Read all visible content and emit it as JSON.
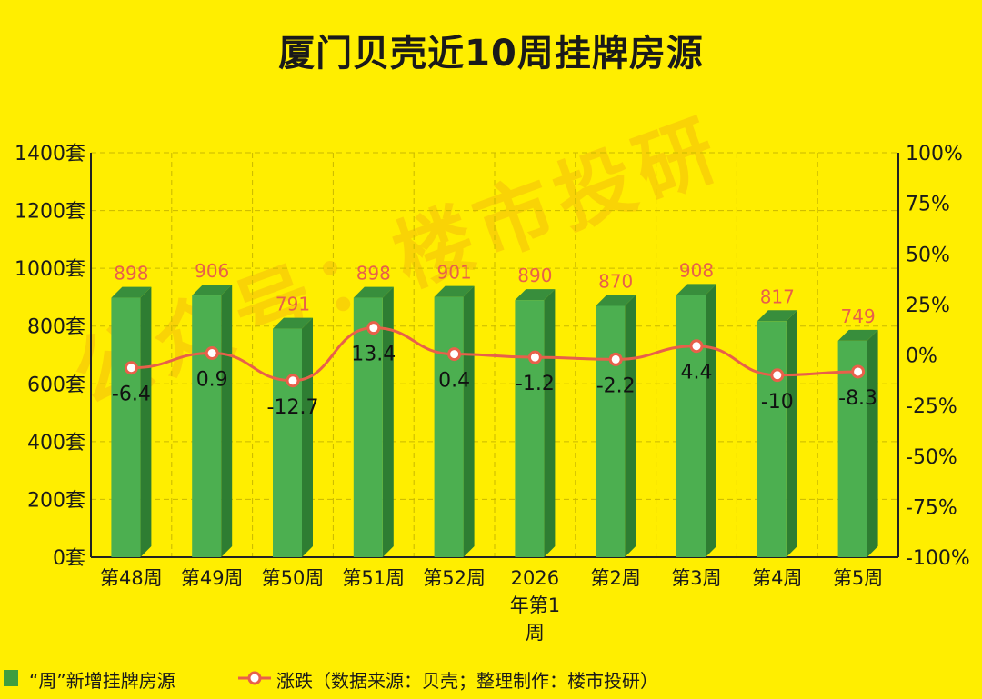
{
  "chart_data": {
    "type": "bar",
    "title": "厦门贝壳近10周挂牌房源",
    "categories": [
      "第48周",
      "第49周",
      "第50周",
      "第51周",
      "第52周",
      "2026年第1周",
      "第2周",
      "第3周",
      "第4周",
      "第5周"
    ],
    "category_lines": [
      [
        "第48周"
      ],
      [
        "第49周"
      ],
      [
        "第50周"
      ],
      [
        "第51周"
      ],
      [
        "第52周"
      ],
      [
        "2026",
        "年第1",
        "周"
      ],
      [
        "第2周"
      ],
      [
        "第3周"
      ],
      [
        "第4周"
      ],
      [
        "第5周"
      ]
    ],
    "series": [
      {
        "name": "“周”新增挂牌房源",
        "type": "bar",
        "axis": "left",
        "values": [
          898,
          906,
          791,
          898,
          901,
          890,
          870,
          908,
          817,
          749
        ],
        "color": "#4caf50"
      },
      {
        "name": "涨跌（数据来源：贝壳；整理制作：楼市投研）",
        "type": "line",
        "axis": "right",
        "values": [
          -6.4,
          0.9,
          -12.7,
          13.4,
          0.4,
          -1.2,
          -2.2,
          4.4,
          -10,
          -8.3
        ],
        "color": "#e8604a"
      }
    ],
    "left_axis": {
      "ylim": [
        0,
        1400
      ],
      "ticks": [
        0,
        200,
        400,
        600,
        800,
        1000,
        1200,
        1400
      ],
      "tick_labels": [
        "0套",
        "200套",
        "400套",
        "600套",
        "800套",
        "1000套",
        "1200套",
        "1400套"
      ]
    },
    "right_axis": {
      "ylim": [
        -100,
        100
      ],
      "ticks": [
        -100,
        -75,
        -50,
        -25,
        0,
        25,
        50,
        75,
        100
      ],
      "tick_labels": [
        "-100%",
        "-75%",
        "-50%",
        "-25%",
        "0%",
        "25%",
        "50%",
        "75%",
        "100%"
      ]
    },
    "grid": true,
    "legend_position": "bottom-left",
    "watermark": "公众号：楼市投研"
  },
  "colors": {
    "background": "#ffee00",
    "bar_front": "#4caf50",
    "bar_side": "#2e7d32",
    "bar_top": "#388e3c",
    "line": "#e8604a",
    "bar_label": "#e8604a",
    "grid": "#c9b800"
  }
}
